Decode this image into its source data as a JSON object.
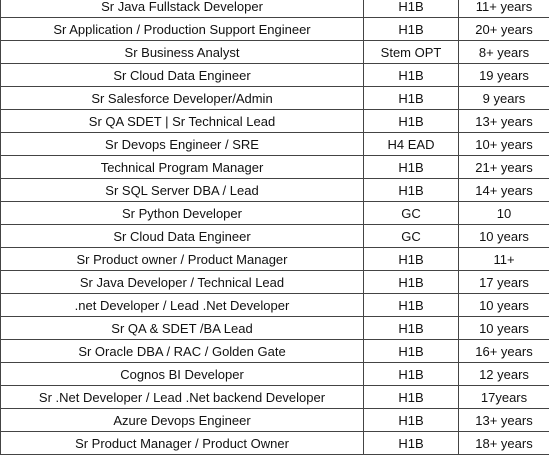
{
  "rows": [
    {
      "role": "Sr Java Fullstack Developer",
      "visa": "H1B",
      "experience": "11+ years"
    },
    {
      "role": "Sr Application / Production Support Engineer",
      "visa": "H1B",
      "experience": "20+ years"
    },
    {
      "role": "Sr Business Analyst",
      "visa": "Stem OPT",
      "experience": "8+ years"
    },
    {
      "role": "Sr Cloud Data Engineer",
      "visa": "H1B",
      "experience": "19 years"
    },
    {
      "role": "Sr Salesforce Developer/Admin",
      "visa": "H1B",
      "experience": "9 years"
    },
    {
      "role": "Sr QA SDET | Sr Technical Lead",
      "visa": "H1B",
      "experience": "13+ years"
    },
    {
      "role": "Sr Devops Engineer / SRE",
      "visa": "H4 EAD",
      "experience": "10+ years"
    },
    {
      "role": "Technical Program Manager",
      "visa": "H1B",
      "experience": "21+ years"
    },
    {
      "role": "Sr SQL Server DBA / Lead",
      "visa": "H1B",
      "experience": "14+ years"
    },
    {
      "role": "Sr Python Developer",
      "visa": "GC",
      "experience": "10"
    },
    {
      "role": "Sr Cloud Data Engineer",
      "visa": "GC",
      "experience": "10 years"
    },
    {
      "role": "Sr Product owner / Product Manager",
      "visa": "H1B",
      "experience": "11+"
    },
    {
      "role": "Sr Java Developer / Technical Lead",
      "visa": "H1B",
      "experience": "17 years"
    },
    {
      "role": ".net Developer / Lead .Net Developer",
      "visa": "H1B",
      "experience": "10 years"
    },
    {
      "role": "Sr QA & SDET /BA Lead",
      "visa": "H1B",
      "experience": "10 years"
    },
    {
      "role": "Sr Oracle DBA / RAC / Golden Gate",
      "visa": "H1B",
      "experience": "16+ years"
    },
    {
      "role": "Cognos BI Developer",
      "visa": "H1B",
      "experience": "12 years"
    },
    {
      "role": "Sr .Net Developer / Lead .Net backend Developer",
      "visa": "H1B",
      "experience": "17years"
    },
    {
      "role": "Azure Devops Engineer",
      "visa": "H1B",
      "experience": "13+ years"
    },
    {
      "role": "Sr Product Manager / Product Owner",
      "visa": "H1B",
      "experience": "18+ years"
    }
  ]
}
